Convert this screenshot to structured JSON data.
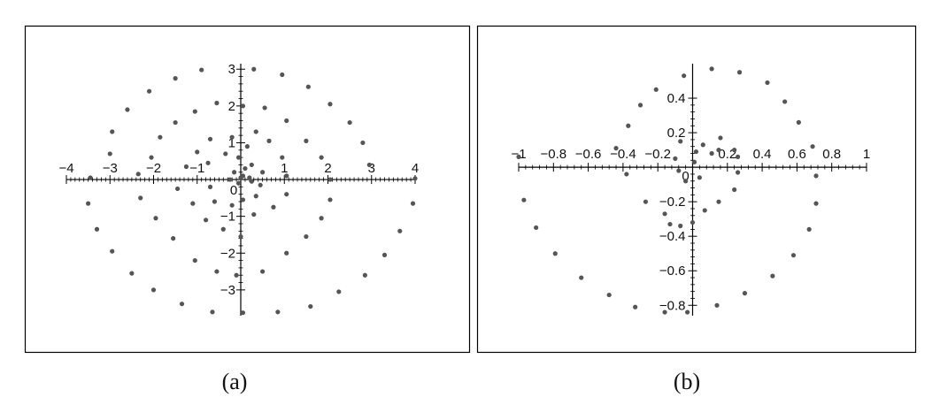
{
  "figure": {
    "panels": [
      {
        "caption": "(a)"
      },
      {
        "caption": "(b)"
      }
    ]
  },
  "chart_data": [
    {
      "type": "scatter",
      "title": "",
      "xlabel": "",
      "ylabel": "",
      "xlim": [
        -4,
        4
      ],
      "ylim": [
        -3.7,
        3.15
      ],
      "grid": false,
      "x_ticks": [
        -4,
        -3,
        -2,
        -1,
        0,
        1,
        2,
        3,
        4
      ],
      "x_tick_labels": [
        "-4",
        "-3",
        "-2",
        "-1",
        "0",
        "1",
        "2",
        "3",
        "4"
      ],
      "y_ticks": [
        -3,
        -2,
        -1,
        1,
        2,
        3
      ],
      "y_tick_labels": [
        "-3",
        "-2",
        "-1",
        "1",
        "2",
        "3"
      ],
      "marker_color": "#555555",
      "points": [
        [
          0.3,
          3.0
        ],
        [
          0.95,
          2.85
        ],
        [
          1.55,
          2.52
        ],
        [
          2.05,
          2.05
        ],
        [
          2.5,
          1.55
        ],
        [
          2.8,
          1.0
        ],
        [
          2.95,
          0.4
        ],
        [
          4.0,
          0.03
        ],
        [
          3.95,
          -0.65
        ],
        [
          3.65,
          -1.4
        ],
        [
          3.3,
          -2.05
        ],
        [
          2.85,
          -2.6
        ],
        [
          2.25,
          -3.05
        ],
        [
          1.6,
          -3.45
        ],
        [
          0.85,
          -3.6
        ],
        [
          0.05,
          -3.62
        ],
        [
          -0.65,
          -3.6
        ],
        [
          -1.35,
          -3.38
        ],
        [
          -2.0,
          -3.0
        ],
        [
          -2.5,
          -2.55
        ],
        [
          -2.95,
          -1.95
        ],
        [
          -3.3,
          -1.35
        ],
        [
          -3.5,
          -0.65
        ],
        [
          -3.45,
          0.05
        ],
        [
          -3.0,
          0.7
        ],
        [
          -2.95,
          1.3
        ],
        [
          -2.6,
          1.9
        ],
        [
          -2.1,
          2.4
        ],
        [
          -1.5,
          2.75
        ],
        [
          -0.9,
          2.98
        ],
        [
          0.05,
          2.0
        ],
        [
          0.55,
          1.95
        ],
        [
          1.05,
          1.6
        ],
        [
          1.5,
          1.05
        ],
        [
          1.85,
          0.6
        ],
        [
          2.05,
          0.0
        ],
        [
          2.05,
          -0.55
        ],
        [
          1.85,
          -1.05
        ],
        [
          1.5,
          -1.55
        ],
        [
          1.05,
          -2.0
        ],
        [
          0.5,
          -2.5
        ],
        [
          -0.1,
          -2.6
        ],
        [
          -0.55,
          -2.5
        ],
        [
          -1.05,
          -2.2
        ],
        [
          -1.55,
          -1.6
        ],
        [
          -1.95,
          -1.05
        ],
        [
          -2.3,
          -0.5
        ],
        [
          -2.35,
          0.15
        ],
        [
          -2.05,
          0.6
        ],
        [
          -1.85,
          1.15
        ],
        [
          -1.5,
          1.55
        ],
        [
          -1.05,
          1.85
        ],
        [
          -0.55,
          2.08
        ],
        [
          0.35,
          1.3
        ],
        [
          0.65,
          1.05
        ],
        [
          0.95,
          0.6
        ],
        [
          1.05,
          0.1
        ],
        [
          1.05,
          -0.4
        ],
        [
          0.75,
          -0.75
        ],
        [
          0.3,
          -0.95
        ],
        [
          0.0,
          -1.55
        ],
        [
          -0.4,
          -1.35
        ],
        [
          -0.8,
          -1.1
        ],
        [
          -1.1,
          -0.65
        ],
        [
          -1.45,
          -0.25
        ],
        [
          -1.25,
          0.35
        ],
        [
          -1.0,
          0.75
        ],
        [
          -0.7,
          1.1
        ],
        [
          -0.2,
          1.15
        ],
        [
          0.15,
          0.9
        ],
        [
          0.25,
          0.4
        ],
        [
          0.5,
          0.2
        ],
        [
          0.45,
          -0.15
        ],
        [
          0.35,
          -0.45
        ],
        [
          0.05,
          -0.55
        ],
        [
          -0.2,
          -0.7
        ],
        [
          -0.6,
          -0.6
        ],
        [
          -0.7,
          -0.2
        ],
        [
          -0.75,
          0.45
        ],
        [
          -0.35,
          0.7
        ],
        [
          -0.05,
          0.6
        ],
        [
          0.1,
          0.3
        ],
        [
          0.2,
          0.05
        ],
        [
          0.25,
          -0.05
        ],
        [
          -0.05,
          -0.1
        ],
        [
          -0.25,
          0.0
        ],
        [
          0.0,
          0.05
        ],
        [
          -0.15,
          0.2
        ],
        [
          0.05,
          0.1
        ]
      ]
    },
    {
      "type": "scatter",
      "title": "",
      "xlabel": "",
      "ylabel": "",
      "xlim": [
        -1,
        1
      ],
      "ylim": [
        -0.86,
        0.6
      ],
      "grid": false,
      "x_ticks": [
        -1,
        -0.8,
        -0.6,
        -0.4,
        -0.2,
        0,
        0.2,
        0.4,
        0.6,
        0.8,
        1
      ],
      "x_tick_labels": [
        "-1",
        "-0.8",
        "-0.6",
        "-0.4",
        "-0.2",
        "0",
        "0.2",
        "0.4",
        "0.6",
        "0.8",
        "1"
      ],
      "y_ticks": [
        -0.8,
        -0.6,
        -0.4,
        -0.2,
        0.2,
        0.4
      ],
      "y_tick_labels": [
        "-0.8",
        "-0.6",
        "-0.4",
        "-0.2",
        "0.2",
        "0.4"
      ],
      "marker_color": "#555555",
      "points": [
        [
          -1.0,
          0.06
        ],
        [
          -0.97,
          -0.19
        ],
        [
          -0.9,
          -0.35
        ],
        [
          -0.79,
          -0.5
        ],
        [
          -0.64,
          -0.64
        ],
        [
          -0.48,
          -0.74
        ],
        [
          -0.33,
          -0.81
        ],
        [
          -0.16,
          -0.84
        ],
        [
          -0.03,
          -0.84
        ],
        [
          0.14,
          -0.8
        ],
        [
          0.3,
          -0.73
        ],
        [
          0.46,
          -0.63
        ],
        [
          0.58,
          -0.51
        ],
        [
          0.67,
          -0.36
        ],
        [
          0.71,
          -0.21
        ],
        [
          0.71,
          -0.05
        ],
        [
          0.69,
          0.12
        ],
        [
          0.61,
          0.26
        ],
        [
          0.53,
          0.38
        ],
        [
          0.43,
          0.49
        ],
        [
          0.27,
          0.55
        ],
        [
          0.11,
          0.57
        ],
        [
          -0.05,
          0.53
        ],
        [
          -0.21,
          0.45
        ],
        [
          -0.3,
          0.36
        ],
        [
          -0.37,
          0.24
        ],
        [
          -0.44,
          0.11
        ],
        [
          -0.38,
          -0.04
        ],
        [
          -0.27,
          -0.2
        ],
        [
          -0.16,
          -0.27
        ],
        [
          -0.07,
          -0.34
        ],
        [
          0.0,
          -0.32
        ],
        [
          0.07,
          -0.25
        ],
        [
          0.15,
          -0.2
        ],
        [
          0.24,
          -0.13
        ],
        [
          0.26,
          -0.03
        ],
        [
          0.26,
          0.06
        ],
        [
          0.24,
          0.1
        ],
        [
          0.15,
          0.1
        ],
        [
          0.06,
          0.13
        ],
        [
          -0.07,
          0.15
        ],
        [
          -0.1,
          0.05
        ],
        [
          -0.08,
          -0.02
        ],
        [
          -0.04,
          -0.08
        ],
        [
          -0.13,
          -0.33
        ],
        [
          0.04,
          -0.06
        ],
        [
          0.11,
          0.08
        ],
        [
          0.16,
          0.17
        ],
        [
          0.01,
          0.03
        ],
        [
          0.02,
          0.09
        ]
      ]
    }
  ]
}
